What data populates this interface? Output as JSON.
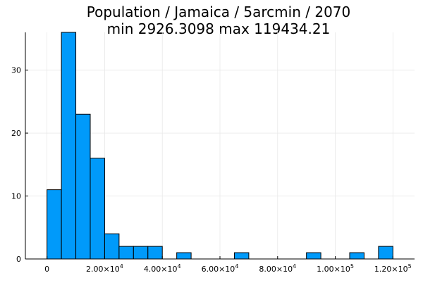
{
  "chart_data": {
    "type": "bar",
    "title_line1": "Population / Jamaica / 5arcmin / 2070",
    "title_line2": "min 2926.3098  max 119434.21",
    "xlabel": "",
    "ylabel": "",
    "bin_width": 5000,
    "bins": [
      {
        "x0": 0,
        "x1": 5000,
        "count": 11
      },
      {
        "x0": 5000,
        "x1": 10000,
        "count": 36
      },
      {
        "x0": 10000,
        "x1": 15000,
        "count": 23
      },
      {
        "x0": 15000,
        "x1": 20000,
        "count": 16
      },
      {
        "x0": 20000,
        "x1": 25000,
        "count": 4
      },
      {
        "x0": 25000,
        "x1": 30000,
        "count": 2
      },
      {
        "x0": 30000,
        "x1": 35000,
        "count": 2
      },
      {
        "x0": 35000,
        "x1": 40000,
        "count": 2
      },
      {
        "x0": 45000,
        "x1": 50000,
        "count": 1
      },
      {
        "x0": 65000,
        "x1": 70000,
        "count": 1
      },
      {
        "x0": 90000,
        "x1": 95000,
        "count": 1
      },
      {
        "x0": 105000,
        "x1": 110000,
        "count": 1
      },
      {
        "x0": 115000,
        "x1": 120000,
        "count": 2
      }
    ],
    "xlim": [
      -7500,
      127500
    ],
    "ylim": [
      0,
      36
    ],
    "x_ticks": [
      {
        "value": 0,
        "mantissa": "0",
        "exp": ""
      },
      {
        "value": 20000,
        "mantissa": "2.00×10",
        "exp": "4"
      },
      {
        "value": 40000,
        "mantissa": "4.00×10",
        "exp": "4"
      },
      {
        "value": 60000,
        "mantissa": "6.00×10",
        "exp": "4"
      },
      {
        "value": 80000,
        "mantissa": "8.00×10",
        "exp": "4"
      },
      {
        "value": 100000,
        "mantissa": "1.00×10",
        "exp": "5"
      },
      {
        "value": 120000,
        "mantissa": "1.20×10",
        "exp": "5"
      }
    ],
    "y_ticks": [
      {
        "value": 0,
        "label": "0"
      },
      {
        "value": 10,
        "label": "10"
      },
      {
        "value": 20,
        "label": "20"
      },
      {
        "value": 30,
        "label": "30"
      }
    ],
    "grid": true,
    "legend": "none",
    "bar_color": "#009AFA",
    "bar_edge_color": "#000000",
    "grid_color": "#E8E8E8"
  }
}
